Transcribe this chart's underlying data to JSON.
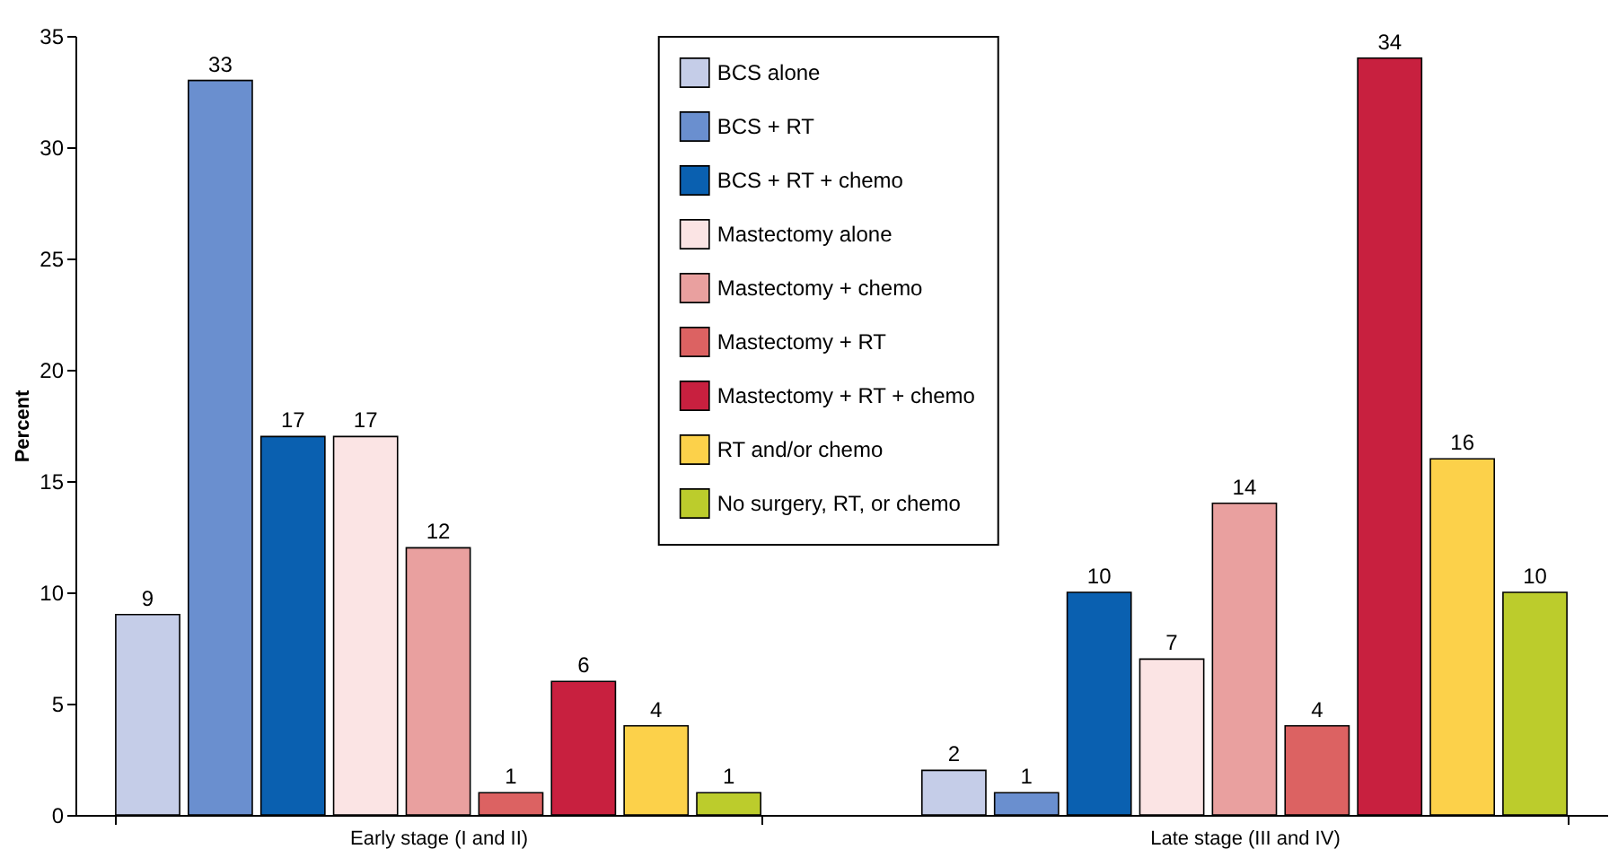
{
  "chart_data": {
    "type": "bar",
    "ylabel": "Percent",
    "categories": [
      "Early stage (I and II)",
      "Late stage (III and IV)"
    ],
    "series": [
      {
        "name": "BCS alone",
        "color": "#c5cde8",
        "values": [
          9,
          2
        ]
      },
      {
        "name": "BCS + RT",
        "color": "#6a8fcf",
        "values": [
          33,
          1
        ]
      },
      {
        "name": "BCS + RT + chemo",
        "color": "#0a60b0",
        "values": [
          17,
          10
        ]
      },
      {
        "name": "Mastectomy alone",
        "color": "#fbe4e4",
        "values": [
          17,
          7
        ]
      },
      {
        "name": "Mastectomy + chemo",
        "color": "#e9a09f",
        "values": [
          12,
          14
        ]
      },
      {
        "name": "Mastectomy + RT",
        "color": "#dc6262",
        "values": [
          1,
          4
        ]
      },
      {
        "name": "Mastectomy + RT + chemo",
        "color": "#c8203f",
        "values": [
          6,
          34
        ]
      },
      {
        "name": "RT and/or chemo",
        "color": "#fcd14a",
        "values": [
          4,
          16
        ]
      },
      {
        "name": "No surgery, RT, or chemo",
        "color": "#bccc2c",
        "values": [
          1,
          10
        ]
      }
    ],
    "ylim": [
      0,
      35
    ],
    "yticks": [
      0,
      5,
      10,
      15,
      20,
      25,
      30,
      35
    ],
    "data_labels": true,
    "legend": "top"
  }
}
